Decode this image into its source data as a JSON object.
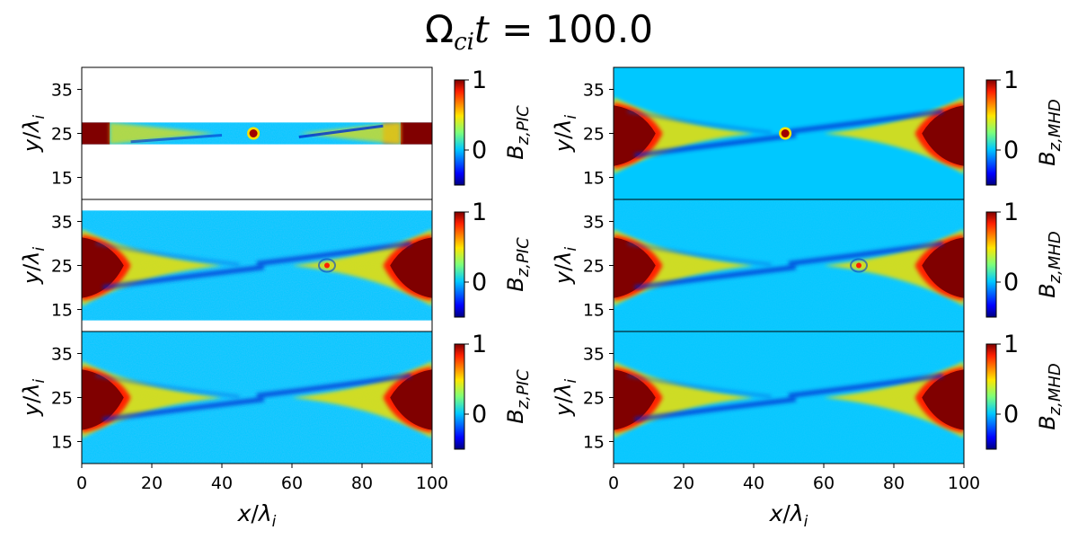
{
  "figure": {
    "title_symbol": "Ω",
    "title_sub": "ci",
    "title_var": "t",
    "title_eq": " = ",
    "title_value": "100.0"
  },
  "colors": {
    "background_field": "#00c8ff",
    "lobe": "#800000",
    "axis": "#000000"
  },
  "chart_data": {
    "type": "heatmap",
    "colormap": "jet",
    "x_range": [
      0,
      100
    ],
    "y_range": [
      10,
      40
    ],
    "x_ticks": [
      "0",
      "20",
      "40",
      "60",
      "80",
      "100"
    ],
    "y_ticks": [
      "15",
      "25",
      "35"
    ],
    "xlabel": "x/λ_i",
    "ylabel": "y/λ_i",
    "colorbar_ticks": [
      "0",
      "1"
    ],
    "colorbar_range": [
      -0.5,
      1
    ],
    "columns": [
      {
        "name": "PIC",
        "colorbar_label": "B_{z,PIC}",
        "panels": [
          {
            "row": 1,
            "data_y_range": [
              22.5,
              27.5
            ],
            "features": [
              "current-sheet-slab",
              "central-island-x49"
            ]
          },
          {
            "row": 2,
            "data_y_range": [
              12.5,
              37.5
            ],
            "features": [
              "x-line-lobes",
              "island-x70"
            ]
          },
          {
            "row": 3,
            "data_y_range": [
              10,
              40
            ],
            "features": [
              "x-line-lobes"
            ]
          }
        ]
      },
      {
        "name": "MHD",
        "colorbar_label": "B_{z,MHD}",
        "panels": [
          {
            "row": 1,
            "data_y_range": [
              10,
              40
            ],
            "features": [
              "x-line-lobes",
              "central-island-x49"
            ]
          },
          {
            "row": 2,
            "data_y_range": [
              10,
              40
            ],
            "features": [
              "x-line-lobes",
              "island-x70"
            ]
          },
          {
            "row": 3,
            "data_y_range": [
              10,
              40
            ],
            "features": [
              "x-line-lobes"
            ]
          }
        ]
      }
    ]
  }
}
